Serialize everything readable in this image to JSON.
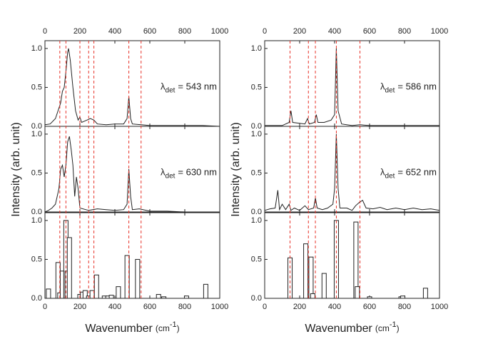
{
  "chart_data": [
    {
      "type": "panels",
      "ylabel": "Intensity (arb. unit)",
      "xlabel": {
        "text": "Wavenumber",
        "unit": "(cm",
        "exponent": "-1",
        "close": ")"
      },
      "xlim": [
        0,
        1000
      ],
      "xticks": [
        0,
        200,
        400,
        600,
        800,
        1000
      ],
      "ylim": [
        0,
        1.1
      ],
      "yticks": [
        {
          "value": 0,
          "label": "0.0"
        },
        {
          "value": 0.5,
          "label": "0.5"
        },
        {
          "value": 1,
          "label": "1.0"
        }
      ],
      "dashed_lines": [
        85,
        120,
        200,
        250,
        280,
        480,
        550
      ],
      "dashed_color": "#e8332a",
      "panels": [
        {
          "type": "line",
          "color": "#222222",
          "annotation": {
            "symbol": "λ",
            "subscript": "det",
            "text": "= 543 nm"
          },
          "x": [
            0,
            30,
            60,
            90,
            100,
            110,
            120,
            130,
            135,
            145,
            160,
            175,
            190,
            200,
            210,
            240,
            260,
            280,
            300,
            350,
            400,
            450,
            470,
            480,
            490,
            500,
            550,
            600,
            700,
            800,
            900,
            1000
          ],
          "values": [
            0.02,
            0.03,
            0.1,
            0.3,
            0.45,
            0.5,
            0.7,
            0.95,
            1.0,
            0.85,
            0.5,
            0.2,
            0.08,
            0.12,
            0.05,
            0.08,
            0.1,
            0.08,
            0.03,
            0.02,
            0.03,
            0.03,
            0.1,
            0.38,
            0.1,
            0.03,
            0.02,
            0.01,
            0.01,
            0.01,
            0.01,
            0.0
          ]
        },
        {
          "type": "line",
          "color": "#222222",
          "annotation": {
            "symbol": "λ",
            "subscript": "det",
            "text": "= 630 nm"
          },
          "x": [
            0,
            20,
            40,
            60,
            80,
            90,
            100,
            110,
            120,
            130,
            140,
            150,
            160,
            170,
            180,
            190,
            200,
            250,
            300,
            350,
            400,
            450,
            470,
            480,
            490,
            500,
            540,
            600,
            700,
            800,
            900,
            1000
          ],
          "values": [
            0.0,
            0.02,
            0.05,
            0.1,
            0.3,
            0.55,
            0.6,
            0.45,
            0.6,
            0.9,
            0.97,
            0.8,
            0.6,
            0.2,
            0.45,
            0.3,
            0.05,
            0.02,
            0.04,
            0.03,
            0.02,
            0.03,
            0.1,
            0.55,
            0.2,
            0.03,
            0.04,
            0.01,
            0.01,
            0.0,
            0.0,
            0.0
          ]
        },
        {
          "type": "bar",
          "color": "#222222",
          "x": [
            20,
            75,
            85,
            100,
            120,
            127,
            140,
            200,
            215,
            230,
            250,
            270,
            295,
            340,
            360,
            380,
            420,
            470,
            530,
            650,
            680,
            810,
            920
          ],
          "values": [
            0.12,
            0.46,
            0.07,
            0.35,
            1.0,
            0.35,
            0.78,
            0.05,
            0.08,
            0.1,
            0.03,
            0.1,
            0.3,
            0.03,
            0.03,
            0.04,
            0.15,
            0.55,
            0.5,
            0.05,
            0.02,
            0.03,
            0.18
          ]
        }
      ]
    },
    {
      "type": "panels",
      "ylabel": "Intensity (arb. unit)",
      "xlabel": {
        "text": "Wavenumber",
        "unit": "(cm",
        "exponent": "-1",
        "close": ")"
      },
      "xlim": [
        0,
        1000
      ],
      "xticks": [
        0,
        200,
        400,
        600,
        800,
        1000
      ],
      "ylim": [
        0,
        1.1
      ],
      "yticks": [
        {
          "value": 0,
          "label": "0.0"
        },
        {
          "value": 0.5,
          "label": "0.5"
        },
        {
          "value": 1,
          "label": "1.0"
        }
      ],
      "dashed_lines": [
        145,
        250,
        290,
        410,
        545
      ],
      "dashed_color": "#e8332a",
      "panels": [
        {
          "type": "line",
          "color": "#222222",
          "annotation": {
            "symbol": "λ",
            "subscript": "det",
            "text": "= 586 nm"
          },
          "x": [
            0,
            100,
            140,
            150,
            160,
            230,
            245,
            255,
            285,
            295,
            305,
            340,
            380,
            400,
            410,
            420,
            440,
            500,
            545,
            600,
            1000
          ],
          "values": [
            0.01,
            0.01,
            0.05,
            0.2,
            0.05,
            0.03,
            0.1,
            0.03,
            0.05,
            0.15,
            0.05,
            0.05,
            0.08,
            0.15,
            1.0,
            0.2,
            0.03,
            0.01,
            0.02,
            0.01,
            0.01
          ]
        },
        {
          "type": "line",
          "color": "#222222",
          "annotation": {
            "symbol": "λ",
            "subscript": "det",
            "text": "= 652 nm"
          },
          "x": [
            0,
            30,
            60,
            75,
            85,
            100,
            120,
            140,
            150,
            170,
            200,
            230,
            250,
            280,
            290,
            300,
            330,
            360,
            390,
            400,
            410,
            420,
            430,
            470,
            500,
            520,
            540,
            560,
            580,
            620,
            660,
            700,
            750,
            800,
            850,
            900,
            950,
            1000
          ],
          "values": [
            0.02,
            0.04,
            0.05,
            0.28,
            0.03,
            0.1,
            0.03,
            0.1,
            0.02,
            0.05,
            0.02,
            0.08,
            0.03,
            0.05,
            0.18,
            0.05,
            0.03,
            0.05,
            0.1,
            0.3,
            1.0,
            0.3,
            0.05,
            0.05,
            0.02,
            0.08,
            0.12,
            0.15,
            0.05,
            0.04,
            0.06,
            0.03,
            0.05,
            0.03,
            0.05,
            0.03,
            0.04,
            0.02
          ]
        },
        {
          "type": "bar",
          "color": "#222222",
          "x": [
            145,
            235,
            265,
            275,
            340,
            410,
            522,
            530,
            600,
            780,
            790,
            920
          ],
          "values": [
            0.52,
            0.7,
            0.53,
            0.06,
            0.32,
            1.0,
            0.98,
            0.15,
            0.02,
            0.02,
            0.03,
            0.13
          ]
        }
      ]
    }
  ]
}
